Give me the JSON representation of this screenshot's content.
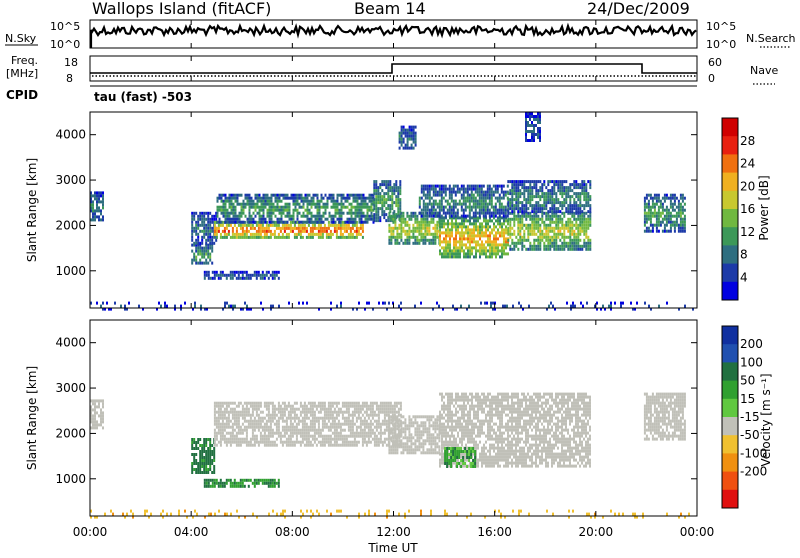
{
  "header": {
    "station": "Wallops Island (fitACF)",
    "beam": "Beam 14",
    "date": "24/Dec/2009"
  },
  "params": {
    "nsky_label": "N.Sky",
    "nsky_tick_hi": "10^5",
    "nsky_tick_lo": "10^0",
    "nsearch_label": "N.Search",
    "nsearch_tick_hi": "10^5",
    "nsearch_tick_lo": "10^0",
    "freq_label_line1": "Freq.",
    "freq_label_line2": "[MHz]",
    "freq_tick_hi": "18",
    "freq_tick_lo": "8",
    "nave_label": "Nave",
    "nave_tick_hi": "60",
    "nave_tick_lo": "0",
    "cpid_label": "CPID",
    "cpid_value": "tau (fast) -503"
  },
  "chart_data": [
    {
      "type": "heatmap",
      "name": "power",
      "ylabel": "Slant Range [km]",
      "yticks": [
        "1000",
        "2000",
        "3000",
        "4000"
      ],
      "ylim": [
        180,
        4500
      ],
      "xlim": [
        0,
        24
      ],
      "colorbar": {
        "label": "Power [dB]",
        "ticks": [
          "4",
          "8",
          "12",
          "16",
          "20",
          "24",
          "28"
        ],
        "range": [
          0,
          32
        ],
        "colors": [
          "#0000e0",
          "#1c3aa8",
          "#2e6e80",
          "#3c9858",
          "#70b840",
          "#c8c830",
          "#f0b020",
          "#f07010",
          "#e82010",
          "#d00000"
        ]
      },
      "regions": [
        {
          "t0": 0.0,
          "t1": 0.5,
          "r0": 2150,
          "r1": 2750,
          "value": 10
        },
        {
          "t0": 4.0,
          "t1": 4.8,
          "r0": 1150,
          "r1": 1600,
          "value": 12
        },
        {
          "t0": 4.0,
          "t1": 5.0,
          "r0": 1600,
          "r1": 2300,
          "value": 8
        },
        {
          "t0": 4.9,
          "t1": 10.8,
          "r0": 1750,
          "r1": 2100,
          "value": 26
        },
        {
          "t0": 5.0,
          "t1": 11.2,
          "r0": 2100,
          "r1": 2700,
          "value": 12
        },
        {
          "t0": 4.5,
          "t1": 7.5,
          "r0": 820,
          "r1": 1000,
          "value": 7
        },
        {
          "t0": 11.2,
          "t1": 12.3,
          "r0": 2100,
          "r1": 3000,
          "value": 12
        },
        {
          "t0": 11.8,
          "t1": 13.8,
          "r0": 1600,
          "r1": 2300,
          "value": 18
        },
        {
          "t0": 13.8,
          "t1": 16.5,
          "r0": 1300,
          "r1": 2200,
          "value": 22
        },
        {
          "t0": 13.0,
          "t1": 16.5,
          "r0": 2200,
          "r1": 2900,
          "value": 10
        },
        {
          "t0": 16.5,
          "t1": 19.8,
          "r0": 1500,
          "r1": 2300,
          "value": 18
        },
        {
          "t0": 16.5,
          "t1": 19.8,
          "r0": 2300,
          "r1": 3000,
          "value": 10
        },
        {
          "t0": 21.9,
          "t1": 23.5,
          "r0": 1900,
          "r1": 2700,
          "value": 12
        },
        {
          "t0": 12.2,
          "t1": 12.9,
          "r0": 3700,
          "r1": 4200,
          "value": 8
        },
        {
          "t0": 17.2,
          "t1": 17.8,
          "r0": 3900,
          "r1": 4500,
          "value": 7
        },
        {
          "t0": 0.0,
          "t1": 24.0,
          "r0": 180,
          "r1": 320,
          "value": 6
        }
      ]
    },
    {
      "type": "heatmap",
      "name": "velocity",
      "ylabel": "Slant Range [km]",
      "yticks": [
        "1000",
        "2000",
        "3000",
        "4000"
      ],
      "ylim": [
        180,
        4500
      ],
      "xlim": [
        0,
        24
      ],
      "xticks": [
        "00:00",
        "04:00",
        "08:00",
        "12:00",
        "16:00",
        "20:00",
        "00:00"
      ],
      "xlabel": "Time UT",
      "colorbar": {
        "label": "Velocity [m s⁻¹]",
        "ticks": [
          "200",
          "100",
          "50",
          "15",
          "-15",
          "-50",
          "-100",
          "-200"
        ],
        "colors": [
          "#1030a0",
          "#2050b0",
          "#207040",
          "#30a030",
          "#60c840",
          "#c0c0b8",
          "#f0c030",
          "#f09010",
          "#f05010",
          "#e01010"
        ]
      },
      "regions": [
        {
          "t0": 0.0,
          "t1": 0.5,
          "r0": 2150,
          "r1": 2750,
          "value": 0
        },
        {
          "t0": 4.0,
          "t1": 4.9,
          "r0": 1150,
          "r1": 1900,
          "value": 60
        },
        {
          "t0": 4.5,
          "t1": 7.5,
          "r0": 820,
          "r1": 1000,
          "value": 50
        },
        {
          "t0": 4.9,
          "t1": 12.3,
          "r0": 1750,
          "r1": 2700,
          "value": 0
        },
        {
          "t0": 11.8,
          "t1": 13.8,
          "r0": 1600,
          "r1": 2400,
          "value": 0
        },
        {
          "t0": 13.8,
          "t1": 19.8,
          "r0": 1300,
          "r1": 2900,
          "value": 0
        },
        {
          "t0": 14.0,
          "t1": 15.2,
          "r0": 1300,
          "r1": 1700,
          "value": 40
        },
        {
          "t0": 21.9,
          "t1": 23.5,
          "r0": 1900,
          "r1": 2900,
          "value": 0
        },
        {
          "t0": 0.0,
          "t1": 24.0,
          "r0": 180,
          "r1": 320,
          "value": -40
        }
      ]
    }
  ]
}
